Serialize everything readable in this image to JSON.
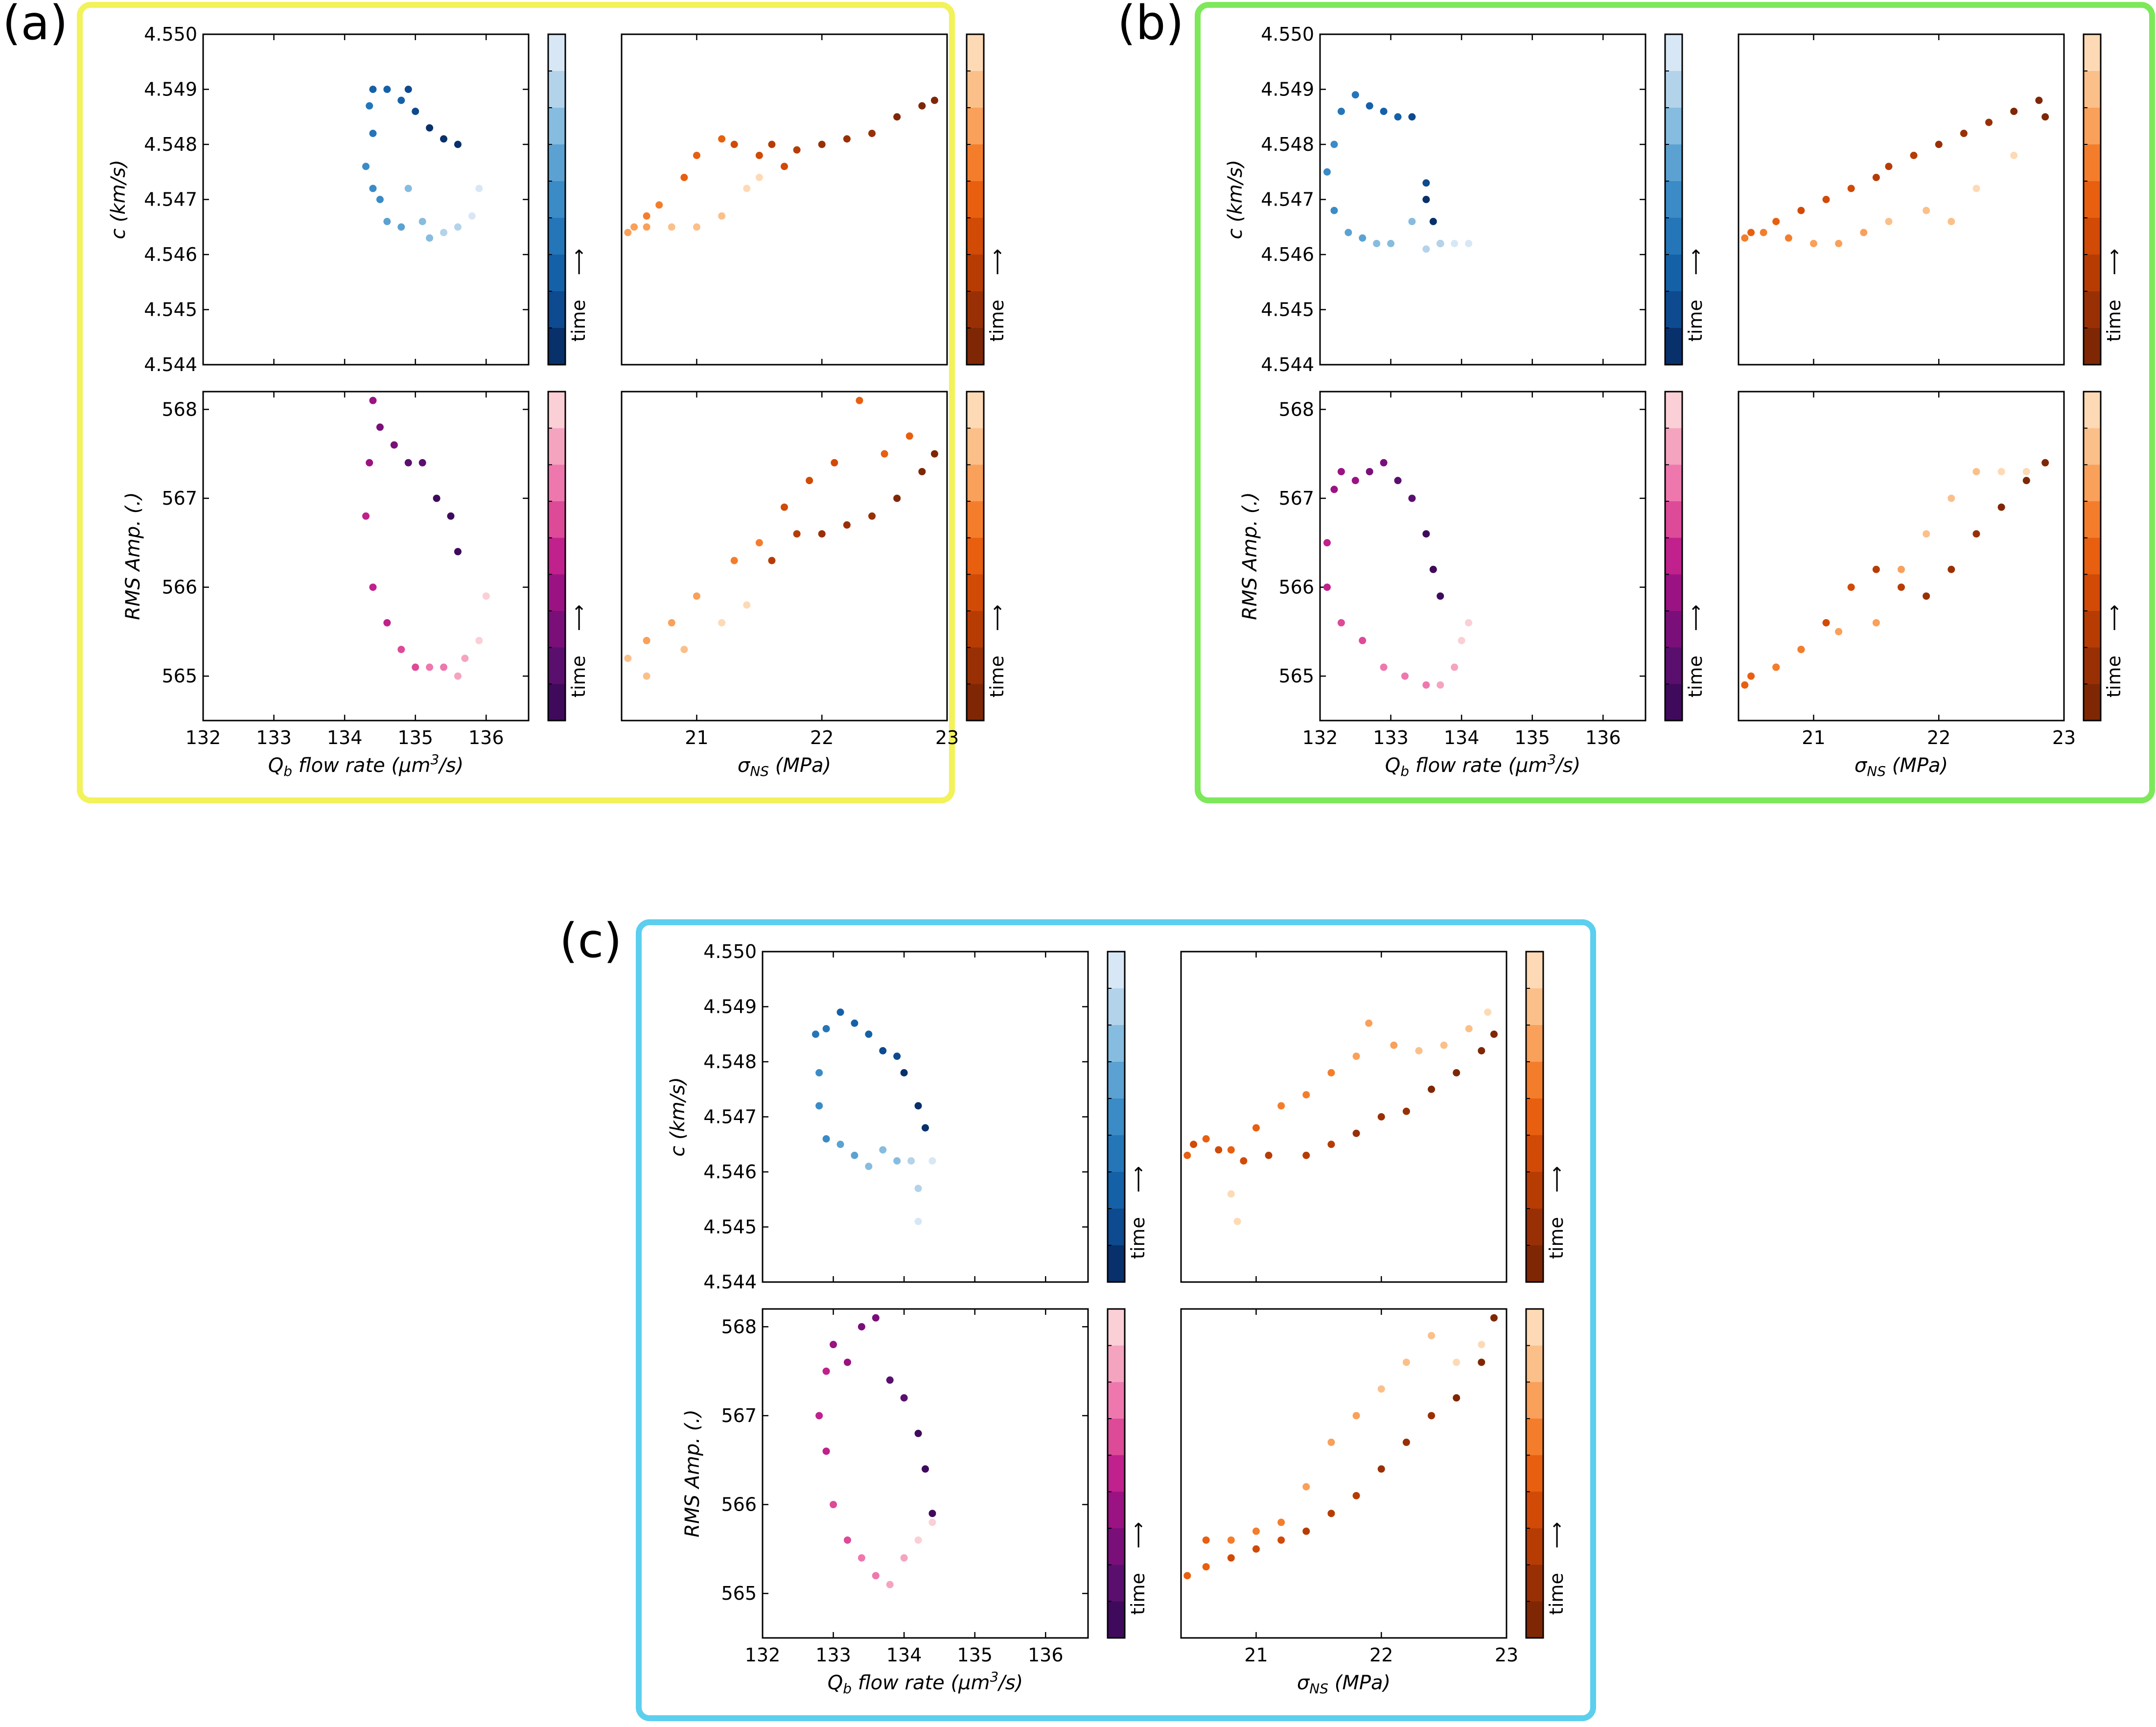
{
  "figure_title": "",
  "colors": {
    "panel_a_frame": "#f2f25a",
    "panel_b_frame": "#7de85a",
    "panel_c_frame": "#5ccfee",
    "blues": [
      "#08306b",
      "#0d4a8f",
      "#1561a8",
      "#2476b8",
      "#3a8bc6",
      "#5ba2d2",
      "#86bcdf",
      "#b3d3ea",
      "#d8e7f5"
    ],
    "purples": [
      "#3f0a5c",
      "#5a0f6e",
      "#7a0f7a",
      "#9b1283",
      "#c0218c",
      "#dd4a98",
      "#ee78ad",
      "#f5a4c0",
      "#fbcfd6"
    ],
    "oranges": [
      "#7f2704",
      "#993005",
      "#b73c03",
      "#d14a06",
      "#e85f10",
      "#f47d2c",
      "#f9a05a",
      "#fbc08a",
      "#fddab5"
    ]
  },
  "colorbar_label": "time",
  "colorbar_arrow": "⟶",
  "axis_labels": {
    "c_ylabel": "c (km/s)",
    "rms_ylabel": "RMS Amp. (.)",
    "q_xlabel_prefix": "Q",
    "q_xlabel_sub": "b",
    "q_xlabel_mid": " flow rate (μm",
    "q_xlabel_sup": "3",
    "q_xlabel_suffix": "/s)",
    "s_xlabel_prefix": "σ",
    "s_xlabel_sub": "NS",
    "s_xlabel_suffix": " (MPa)"
  },
  "ticks": {
    "c_y": [
      "4.544",
      "4.545",
      "4.546",
      "4.547",
      "4.548",
      "4.549",
      "4.550"
    ],
    "rms_y": [
      "565",
      "566",
      "567",
      "568"
    ],
    "q_x": [
      "132",
      "133",
      "134",
      "135",
      "136"
    ],
    "s_x": [
      "21",
      "22",
      "23"
    ]
  },
  "chart_data": [
    {
      "panel": "(a)",
      "type": "scatter",
      "axes": {
        "xlim_q": [
          132,
          136.6
        ],
        "xlim_s": [
          20.4,
          23.0
        ],
        "ylim_c": [
          4.544,
          4.55
        ],
        "ylim_rms": [
          564.5,
          568.2
        ]
      },
      "c_vs_q": [
        [
          135.6,
          4.548
        ],
        [
          135.4,
          4.5481
        ],
        [
          135.2,
          4.5483
        ],
        [
          135.0,
          4.5486
        ],
        [
          134.9,
          4.549
        ],
        [
          134.8,
          4.5488
        ],
        [
          134.6,
          4.549
        ],
        [
          134.4,
          4.549
        ],
        [
          134.35,
          4.5487
        ],
        [
          134.4,
          4.5482
        ],
        [
          134.3,
          4.5476
        ],
        [
          134.4,
          4.5472
        ],
        [
          134.5,
          4.547
        ],
        [
          134.6,
          4.5466
        ],
        [
          134.8,
          4.5465
        ],
        [
          134.9,
          4.5472
        ],
        [
          135.1,
          4.5466
        ],
        [
          135.2,
          4.5463
        ],
        [
          135.4,
          4.5464
        ],
        [
          135.6,
          4.5465
        ],
        [
          135.8,
          4.5467
        ],
        [
          135.9,
          4.5472
        ]
      ],
      "c_vs_s": [
        [
          22.9,
          4.5488
        ],
        [
          22.8,
          4.5487
        ],
        [
          22.6,
          4.5485
        ],
        [
          22.4,
          4.5482
        ],
        [
          22.2,
          4.5481
        ],
        [
          22.0,
          4.548
        ],
        [
          21.8,
          4.5479
        ],
        [
          21.6,
          4.548
        ],
        [
          21.7,
          4.5476
        ],
        [
          21.5,
          4.5478
        ],
        [
          21.3,
          4.548
        ],
        [
          21.2,
          4.5481
        ],
        [
          21.0,
          4.5478
        ],
        [
          20.9,
          4.5474
        ],
        [
          20.7,
          4.5469
        ],
        [
          20.6,
          4.5467
        ],
        [
          20.5,
          4.5465
        ],
        [
          20.45,
          4.5464
        ],
        [
          20.6,
          4.5465
        ],
        [
          20.8,
          4.5465
        ],
        [
          21.0,
          4.5465
        ],
        [
          21.2,
          4.5467
        ],
        [
          21.4,
          4.5472
        ],
        [
          21.5,
          4.5474
        ]
      ],
      "rms_vs_q": [
        [
          135.6,
          566.4
        ],
        [
          135.5,
          566.8
        ],
        [
          135.3,
          567.0
        ],
        [
          135.1,
          567.4
        ],
        [
          134.9,
          567.4
        ],
        [
          134.7,
          567.6
        ],
        [
          134.5,
          567.8
        ],
        [
          134.4,
          568.1
        ],
        [
          134.35,
          567.4
        ],
        [
          134.3,
          566.8
        ],
        [
          134.4,
          566.0
        ],
        [
          134.6,
          565.6
        ],
        [
          134.8,
          565.3
        ],
        [
          135.0,
          565.1
        ],
        [
          135.2,
          565.1
        ],
        [
          135.4,
          565.1
        ],
        [
          135.6,
          565.0
        ],
        [
          135.7,
          565.2
        ],
        [
          135.9,
          565.4
        ],
        [
          136.0,
          565.9
        ]
      ],
      "rms_vs_s": [
        [
          22.9,
          567.5
        ],
        [
          22.8,
          567.3
        ],
        [
          22.6,
          567.0
        ],
        [
          22.4,
          566.8
        ],
        [
          22.2,
          566.7
        ],
        [
          22.0,
          566.6
        ],
        [
          21.8,
          566.6
        ],
        [
          21.6,
          566.3
        ],
        [
          21.7,
          566.9
        ],
        [
          21.9,
          567.2
        ],
        [
          22.1,
          567.4
        ],
        [
          22.3,
          568.1
        ],
        [
          22.5,
          567.5
        ],
        [
          22.7,
          567.7
        ],
        [
          21.5,
          566.5
        ],
        [
          21.3,
          566.3
        ],
        [
          21.0,
          565.9
        ],
        [
          20.8,
          565.6
        ],
        [
          20.6,
          565.4
        ],
        [
          20.45,
          565.2
        ],
        [
          20.6,
          565.0
        ],
        [
          20.9,
          565.3
        ],
        [
          21.2,
          565.6
        ],
        [
          21.4,
          565.8
        ]
      ]
    },
    {
      "panel": "(b)",
      "type": "scatter",
      "axes": {
        "xlim_q": [
          132,
          136.6
        ],
        "xlim_s": [
          20.4,
          23.0
        ],
        "ylim_c": [
          4.544,
          4.55
        ],
        "ylim_rms": [
          564.5,
          568.2
        ]
      },
      "c_vs_q": [
        [
          133.7,
          4.5462
        ],
        [
          133.6,
          4.5466
        ],
        [
          133.5,
          4.547
        ],
        [
          133.5,
          4.5473
        ],
        [
          133.3,
          4.5485
        ],
        [
          133.1,
          4.5485
        ],
        [
          132.9,
          4.5486
        ],
        [
          132.7,
          4.5487
        ],
        [
          132.5,
          4.5489
        ],
        [
          132.3,
          4.5486
        ],
        [
          132.2,
          4.548
        ],
        [
          132.1,
          4.5475
        ],
        [
          132.2,
          4.5468
        ],
        [
          132.4,
          4.5464
        ],
        [
          132.6,
          4.5463
        ],
        [
          132.8,
          4.5462
        ],
        [
          133.0,
          4.5462
        ],
        [
          133.3,
          4.5466
        ],
        [
          133.5,
          4.5461
        ],
        [
          133.7,
          4.5462
        ],
        [
          133.9,
          4.5462
        ],
        [
          134.1,
          4.5462
        ]
      ],
      "c_vs_s": [
        [
          22.85,
          4.5485
        ],
        [
          22.8,
          4.5488
        ],
        [
          22.6,
          4.5486
        ],
        [
          22.4,
          4.5484
        ],
        [
          22.2,
          4.5482
        ],
        [
          22.0,
          4.548
        ],
        [
          21.8,
          4.5478
        ],
        [
          21.6,
          4.5476
        ],
        [
          21.5,
          4.5474
        ],
        [
          21.3,
          4.5472
        ],
        [
          21.1,
          4.547
        ],
        [
          20.9,
          4.5468
        ],
        [
          20.7,
          4.5466
        ],
        [
          20.5,
          4.5464
        ],
        [
          20.45,
          4.5463
        ],
        [
          20.6,
          4.5464
        ],
        [
          20.8,
          4.5463
        ],
        [
          21.0,
          4.5462
        ],
        [
          21.2,
          4.5462
        ],
        [
          21.4,
          4.5464
        ],
        [
          21.6,
          4.5466
        ],
        [
          21.9,
          4.5468
        ],
        [
          22.1,
          4.5466
        ],
        [
          22.3,
          4.5472
        ],
        [
          22.6,
          4.5478
        ]
      ],
      "rms_vs_q": [
        [
          133.7,
          565.9
        ],
        [
          133.6,
          566.2
        ],
        [
          133.5,
          566.6
        ],
        [
          133.3,
          567.0
        ],
        [
          133.1,
          567.2
        ],
        [
          132.9,
          567.4
        ],
        [
          132.7,
          567.3
        ],
        [
          132.5,
          567.2
        ],
        [
          132.3,
          567.3
        ],
        [
          132.2,
          567.1
        ],
        [
          132.1,
          566.5
        ],
        [
          132.1,
          566.0
        ],
        [
          132.3,
          565.6
        ],
        [
          132.6,
          565.4
        ],
        [
          132.9,
          565.1
        ],
        [
          133.2,
          565.0
        ],
        [
          133.5,
          564.9
        ],
        [
          133.7,
          564.9
        ],
        [
          133.9,
          565.1
        ],
        [
          134.0,
          565.4
        ],
        [
          134.1,
          565.6
        ]
      ],
      "rms_vs_s": [
        [
          22.85,
          567.4
        ],
        [
          22.7,
          567.2
        ],
        [
          22.5,
          566.9
        ],
        [
          22.3,
          566.6
        ],
        [
          22.1,
          566.2
        ],
        [
          21.9,
          565.9
        ],
        [
          21.7,
          566.0
        ],
        [
          21.5,
          566.2
        ],
        [
          21.3,
          566.0
        ],
        [
          21.1,
          565.6
        ],
        [
          20.9,
          565.3
        ],
        [
          20.7,
          565.1
        ],
        [
          20.5,
          565.0
        ],
        [
          20.45,
          564.9
        ],
        [
          20.7,
          565.1
        ],
        [
          20.9,
          565.3
        ],
        [
          21.2,
          565.5
        ],
        [
          21.5,
          565.6
        ],
        [
          21.7,
          566.2
        ],
        [
          21.9,
          566.6
        ],
        [
          22.1,
          567.0
        ],
        [
          22.3,
          567.3
        ],
        [
          22.5,
          567.3
        ],
        [
          22.7,
          567.3
        ]
      ]
    },
    {
      "panel": "(c)",
      "type": "scatter",
      "axes": {
        "xlim_q": [
          132,
          136.6
        ],
        "xlim_s": [
          20.4,
          23.0
        ],
        "ylim_c": [
          4.544,
          4.55
        ],
        "ylim_rms": [
          564.5,
          568.2
        ]
      },
      "c_vs_q": [
        [
          134.3,
          4.5468
        ],
        [
          134.2,
          4.5472
        ],
        [
          134.0,
          4.5478
        ],
        [
          133.9,
          4.5481
        ],
        [
          133.7,
          4.5482
        ],
        [
          133.5,
          4.5485
        ],
        [
          133.3,
          4.5487
        ],
        [
          133.1,
          4.5489
        ],
        [
          132.9,
          4.5486
        ],
        [
          132.75,
          4.5485
        ],
        [
          132.8,
          4.5478
        ],
        [
          132.8,
          4.5472
        ],
        [
          132.9,
          4.5466
        ],
        [
          133.1,
          4.5465
        ],
        [
          133.3,
          4.5463
        ],
        [
          133.5,
          4.5461
        ],
        [
          133.7,
          4.5464
        ],
        [
          133.9,
          4.5462
        ],
        [
          134.1,
          4.5462
        ],
        [
          134.2,
          4.5457
        ],
        [
          134.2,
          4.5451
        ],
        [
          134.4,
          4.5462
        ]
      ],
      "c_vs_s": [
        [
          22.9,
          4.5485
        ],
        [
          22.8,
          4.5482
        ],
        [
          22.6,
          4.5478
        ],
        [
          22.4,
          4.5475
        ],
        [
          22.2,
          4.5471
        ],
        [
          22.0,
          4.547
        ],
        [
          21.8,
          4.5467
        ],
        [
          21.6,
          4.5465
        ],
        [
          21.4,
          4.5463
        ],
        [
          21.1,
          4.5463
        ],
        [
          20.9,
          4.5462
        ],
        [
          20.7,
          4.5464
        ],
        [
          20.5,
          4.5465
        ],
        [
          20.45,
          4.5463
        ],
        [
          20.6,
          4.5466
        ],
        [
          20.8,
          4.5464
        ],
        [
          21.0,
          4.5468
        ],
        [
          21.2,
          4.5472
        ],
        [
          21.4,
          4.5474
        ],
        [
          21.6,
          4.5478
        ],
        [
          21.8,
          4.5481
        ],
        [
          21.9,
          4.5487
        ],
        [
          22.1,
          4.5483
        ],
        [
          22.3,
          4.5482
        ],
        [
          22.5,
          4.5483
        ],
        [
          22.7,
          4.5486
        ],
        [
          22.85,
          4.5489
        ],
        [
          20.8,
          4.5456
        ],
        [
          20.85,
          4.5451
        ]
      ],
      "rms_vs_q": [
        [
          134.4,
          565.9
        ],
        [
          134.3,
          566.4
        ],
        [
          134.2,
          566.8
        ],
        [
          134.0,
          567.2
        ],
        [
          133.8,
          567.4
        ],
        [
          133.6,
          568.1
        ],
        [
          133.4,
          568.0
        ],
        [
          133.2,
          567.6
        ],
        [
          133.0,
          567.8
        ],
        [
          132.9,
          567.5
        ],
        [
          132.8,
          567.0
        ],
        [
          132.9,
          566.6
        ],
        [
          133.0,
          566.0
        ],
        [
          133.2,
          565.6
        ],
        [
          133.4,
          565.4
        ],
        [
          133.6,
          565.2
        ],
        [
          133.8,
          565.1
        ],
        [
          134.0,
          565.4
        ],
        [
          134.2,
          565.6
        ],
        [
          134.4,
          565.8
        ]
      ],
      "rms_vs_s": [
        [
          22.9,
          568.1
        ],
        [
          22.8,
          567.6
        ],
        [
          22.6,
          567.2
        ],
        [
          22.4,
          567.0
        ],
        [
          22.2,
          566.7
        ],
        [
          22.0,
          566.4
        ],
        [
          21.8,
          566.1
        ],
        [
          21.6,
          565.9
        ],
        [
          21.4,
          565.7
        ],
        [
          21.2,
          565.6
        ],
        [
          21.0,
          565.5
        ],
        [
          20.8,
          565.4
        ],
        [
          20.6,
          565.3
        ],
        [
          20.45,
          565.2
        ],
        [
          20.6,
          565.6
        ],
        [
          20.8,
          565.6
        ],
        [
          21.0,
          565.7
        ],
        [
          21.2,
          565.8
        ],
        [
          21.4,
          566.2
        ],
        [
          21.6,
          566.7
        ],
        [
          21.8,
          567.0
        ],
        [
          22.0,
          567.3
        ],
        [
          22.2,
          567.6
        ],
        [
          22.4,
          567.9
        ],
        [
          22.6,
          567.6
        ],
        [
          22.8,
          567.8
        ]
      ]
    }
  ]
}
